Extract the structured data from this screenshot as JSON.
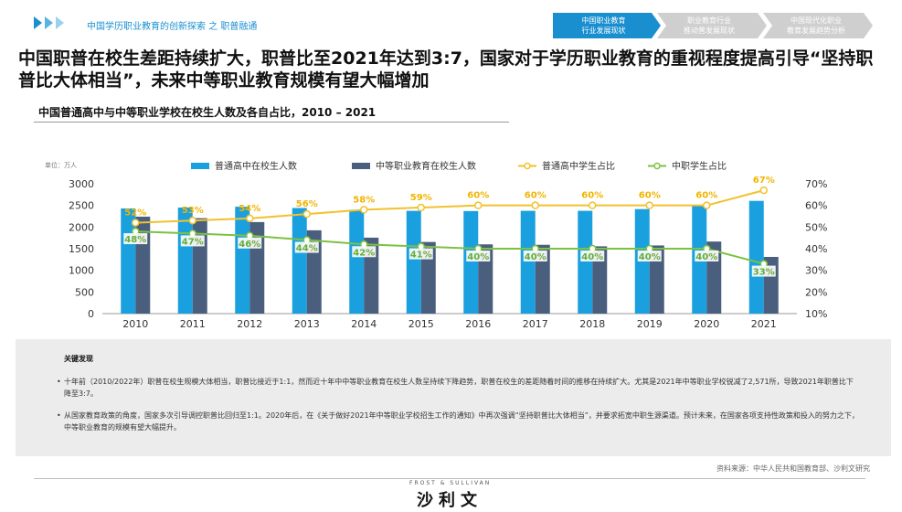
{
  "header": {
    "breadcrumb": "中国学历职业教育的创新探索 之 职普融通",
    "tabs": [
      {
        "line1": "中国职业教育",
        "line2": "行业发展现状",
        "active": true
      },
      {
        "line1": "职业教育行业",
        "line2": "推动普发展现状",
        "active": false
      },
      {
        "line1": "中国现代化职业",
        "line2": "教育发展趋势分析",
        "active": false
      }
    ],
    "accent": "#1a8fd0",
    "inactive": "#cfcfcf"
  },
  "headline": "中国职普在校生差距持续扩大，职普比至2021年达到3:7，国家对于学历职业教育的重视程度提高引导“坚持职普比大体相当”，未来中等职业教育规模有望大幅增加",
  "chart_title": "中国普通高中与中等职业学校在校生人数及各自占比，2010 – 2021",
  "chart_data": {
    "type": "bar",
    "unit_label": "单位：万人",
    "categories": [
      "2010",
      "2011",
      "2012",
      "2013",
      "2014",
      "2015",
      "2016",
      "2017",
      "2018",
      "2019",
      "2020",
      "2021"
    ],
    "series": [
      {
        "name": "普通高中在校生人数",
        "kind": "bar",
        "axis": "left",
        "color": "#1aa0de",
        "values": [
          2430,
          2450,
          2470,
          2440,
          2400,
          2375,
          2370,
          2375,
          2375,
          2415,
          2495,
          2605
        ]
      },
      {
        "name": "中等职业教育在校生人数",
        "kind": "bar",
        "axis": "left",
        "color": "#4a5e7e",
        "values": [
          2240,
          2205,
          2115,
          1925,
          1755,
          1655,
          1600,
          1590,
          1555,
          1575,
          1665,
          1310
        ]
      },
      {
        "name": "普通高中学生占比",
        "kind": "line",
        "axis": "right",
        "color": "#f2c12e",
        "values": [
          52,
          53,
          54,
          56,
          58,
          59,
          60,
          60,
          60,
          60,
          60,
          67
        ],
        "labels": [
          "52%",
          "53%",
          "54%",
          "56%",
          "58%",
          "59%",
          "60%",
          "60%",
          "60%",
          "60%",
          "60%",
          "67%"
        ]
      },
      {
        "name": "中职学生占比",
        "kind": "line",
        "axis": "right",
        "color": "#7cc142",
        "values": [
          48,
          47,
          46,
          44,
          42,
          41,
          40,
          40,
          40,
          40,
          40,
          33
        ],
        "labels": [
          "48%",
          "47%",
          "46%",
          "44%",
          "42%",
          "41%",
          "40%",
          "40%",
          "40%",
          "40%",
          "40%",
          "33%"
        ]
      }
    ],
    "y_left": {
      "min": 0,
      "max": 3000,
      "ticks": [
        "0",
        "500",
        "1000",
        "1500",
        "2000",
        "2500",
        "3000"
      ]
    },
    "y_right": {
      "min": 10,
      "max": 70,
      "ticks": [
        "10%",
        "20%",
        "30%",
        "40%",
        "50%",
        "60%",
        "70%"
      ]
    },
    "legend_position": "top"
  },
  "notes": {
    "title": "关键发现",
    "items": [
      "十年前（2010/2022年）职普在校生规模大体相当，职普比接近于1:1，然而近十年中中等职业教育在校生人数呈持续下降趋势，职普在校生的差距随着时间的推移在持续扩大。尤其是2021年中等职业学校锐减了2,571所，导致2021年职普比下降至3:7。",
      "从国家教育政策的角度，国家多次引导调控职普比回归至1:1。2020年后，在《关于做好2021年中等职业学校招生工作的通知》中再次强调“坚持职普比大体相当”，并要求拓宽中职生源渠道。预计未来，在国家各项支持性政策和投入的努力之下，中等职业教育的规模有望大幅提升。"
    ]
  },
  "source": "资料来源：中华人民共和国教育部、沙利文研究",
  "logo": {
    "en": "FROST & SULLIVAN",
    "cn": "沙利文"
  }
}
